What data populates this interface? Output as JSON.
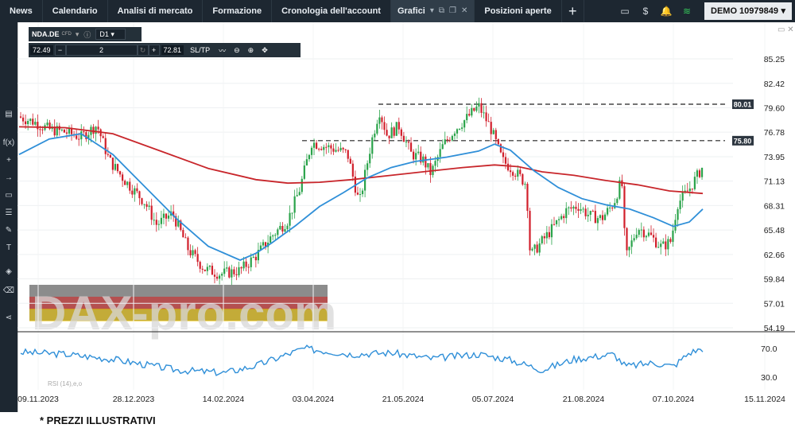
{
  "tabs": [
    {
      "label": "News"
    },
    {
      "label": "Calendario"
    },
    {
      "label": "Analisi di mercato"
    },
    {
      "label": "Formazione"
    },
    {
      "label": "Cronologia dell'account"
    },
    {
      "label": "Grafici"
    },
    {
      "label": "Posizioni aperte"
    }
  ],
  "account": {
    "label": "DEMO 10979849"
  },
  "instrument": {
    "symbol": "NDA.DE",
    "type": "CFD",
    "timeframe": "D1"
  },
  "trade": {
    "sell": "72.49",
    "qty": "2",
    "buy": "72.81",
    "sltp": "SL/TP"
  },
  "watermark": "DAX-pro.com",
  "footnote": "* PREZZI ILLUSTRATIVI",
  "chart_data": {
    "type": "candlestick",
    "y_ticks": [
      "85.25",
      "82.42",
      "79.60",
      "76.78",
      "73.95",
      "71.13",
      "68.31",
      "65.48",
      "62.66",
      "59.84",
      "57.01",
      "54.19"
    ],
    "x_ticks": [
      "09.11.2023",
      "28.12.2023",
      "14.02.2024",
      "03.04.2024",
      "21.05.2024",
      "05.07.2024",
      "21.08.2024",
      "07.10.2024",
      "15.11.2024"
    ],
    "levels": [
      {
        "value": "80.01"
      },
      {
        "value": "75.80"
      }
    ],
    "indicator_ticks": [
      "70.0",
      "30.0"
    ],
    "indicator_label": "RSI (14),e,o",
    "ma_colors": {
      "fast": "#2f8fd8",
      "slow": "#c8262b"
    },
    "candle_colors": {
      "up": "#2aa34a",
      "down": "#d11f2b"
    }
  }
}
